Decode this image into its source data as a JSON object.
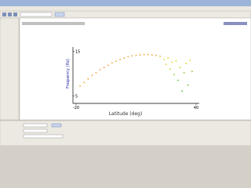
{
  "chart_data": {
    "type": "scatter",
    "x_label": "Latitude (deg)",
    "y_label": "Frequency (Hz)",
    "x": [
      -18,
      -16,
      -14,
      -12,
      -10,
      -8,
      -6,
      -4,
      -2,
      0,
      2,
      4,
      6,
      8,
      10,
      12,
      14,
      16,
      18,
      20,
      22,
      24,
      25,
      26,
      27,
      28,
      29,
      30,
      31,
      32,
      33,
      34,
      35,
      36,
      37,
      38
    ],
    "values": [
      7.2,
      8.0,
      8.8,
      9.6,
      10.2,
      10.9,
      11.4,
      11.9,
      12.4,
      12.8,
      13.2,
      13.5,
      13.8,
      14.0,
      14.1,
      14.2,
      14.3,
      14.3,
      14.2,
      14.1,
      13.9,
      13.2,
      12.1,
      13.5,
      11.0,
      12.6,
      9.8,
      12.9,
      8.5,
      11.4,
      6.1,
      10.2,
      12.3,
      7.4,
      13.0,
      10.5
    ],
    "colors": [
      "#f0a030",
      "#f0a030",
      "#f0a030",
      "#f0a030",
      "#f0a030",
      "#f0a030",
      "#f0a030",
      "#f0a030",
      "#f0a030",
      "#f0a030",
      "#f0a030",
      "#f0a030",
      "#f0a030",
      "#f0a030",
      "#f0a030",
      "#f0a030",
      "#f0a030",
      "#f0a030",
      "#f0a030",
      "#f0a030",
      "#f0b020",
      "#e8d020",
      "#e8d020",
      "#e8d020",
      "#c8d820",
      "#e8d020",
      "#80c820",
      "#e8d020",
      "#60c020",
      "#c8d820",
      "#40b020",
      "#80c820",
      "#e8d020",
      "#60c020",
      "#e8d020",
      "#80c820"
    ],
    "xlim": [
      -20,
      40
    ],
    "xticks": [
      -20,
      40
    ],
    "ylim": [
      4,
      16
    ],
    "yticks": [
      5,
      15
    ]
  }
}
